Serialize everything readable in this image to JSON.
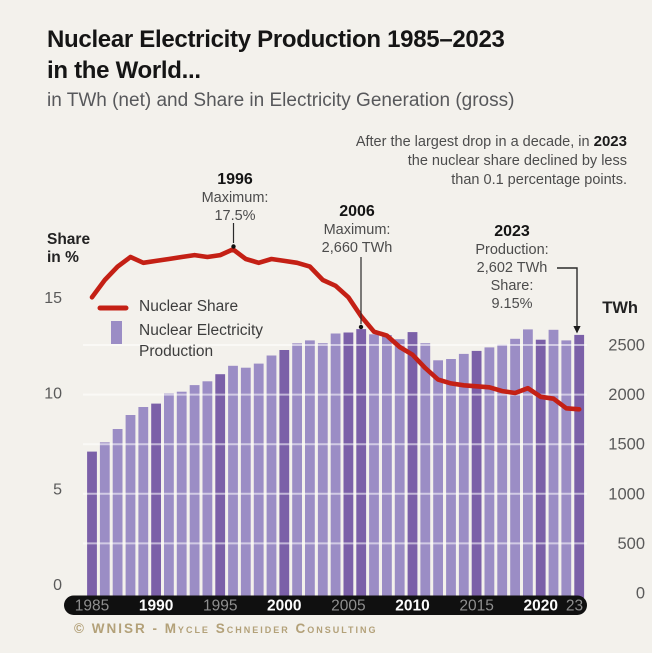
{
  "header": {
    "title_line1": "Nuclear Electricity Production 1985–2023",
    "title_line2": "in the World...",
    "subtitle": "in TWh (net) and Share in Electricity Generation (gross)"
  },
  "note": {
    "line1_prefix": "After the largest drop in a decade, in ",
    "line1_bold": "2023",
    "line2": "the nuclear share declined by less",
    "line3": "than 0.1 percentage points."
  },
  "callouts": {
    "c1996": {
      "year": "1996",
      "label": "Maximum:",
      "value": "17.5%"
    },
    "c2006": {
      "year": "2006",
      "label": "Maximum:",
      "value": "2,660 TWh"
    },
    "c2023": {
      "year": "2023",
      "label1": "Production:",
      "value1": "2,602 TWh",
      "label2": "Share:",
      "value2": "9.15%"
    }
  },
  "axes": {
    "left_title_line1": "Share",
    "left_title_line2": "in %",
    "right_title": "TWh"
  },
  "legend": {
    "share_label": "Nuclear Share",
    "production_line1": "Nuclear Electricity",
    "production_line2": "Production"
  },
  "footer": "© WNISR - Mycle Schneider Consulting",
  "colors": {
    "background": "#f3f1ec",
    "bar_light": "#9b8dc5",
    "bar_dark": "#7b60a8",
    "line_red": "#c42015",
    "pill_black": "#101010",
    "year_gray": "#8f8f8f",
    "year_white": "#fbfbfb",
    "tick_gray": "#5a5a5a",
    "footer_tan": "#b3a179"
  },
  "chart_data": {
    "type": "combo",
    "title": "Nuclear Electricity Production 1985–2023 in the World...",
    "subtitle": "in TWh (net) and Share in Electricity Generation (gross)",
    "x": [
      1985,
      1986,
      1987,
      1988,
      1989,
      1990,
      1991,
      1992,
      1993,
      1994,
      1995,
      1996,
      1997,
      1998,
      1999,
      2000,
      2001,
      2002,
      2003,
      2004,
      2005,
      2006,
      2007,
      2008,
      2009,
      2010,
      2011,
      2012,
      2013,
      2014,
      2015,
      2016,
      2017,
      2018,
      2019,
      2020,
      2021,
      2022,
      2023
    ],
    "series": [
      {
        "name": "Nuclear Electricity Production",
        "type": "bar",
        "unit": "TWh (net)",
        "axis": "right",
        "values": [
          1425,
          1519,
          1653,
          1794,
          1875,
          1909,
          2012,
          2029,
          2096,
          2134,
          2206,
          2290,
          2271,
          2313,
          2394,
          2450,
          2517,
          2546,
          2518,
          2616,
          2626,
          2660,
          2608,
          2601,
          2558,
          2630,
          2518,
          2346,
          2359,
          2410,
          2441,
          2476,
          2503,
          2563,
          2657,
          2553,
          2653,
          2546,
          2602
        ]
      },
      {
        "name": "Nuclear Share",
        "type": "line",
        "unit": "% (gross)",
        "axis": "left",
        "values": [
          15.0,
          15.9,
          16.6,
          17.1,
          16.8,
          16.9,
          17.0,
          17.1,
          17.2,
          17.1,
          17.2,
          17.5,
          17.0,
          16.8,
          17.0,
          16.9,
          16.8,
          16.6,
          15.9,
          15.6,
          15.0,
          14.0,
          13.2,
          13.0,
          12.4,
          12.0,
          11.3,
          10.7,
          10.5,
          10.4,
          10.35,
          10.3,
          10.1,
          10.0,
          10.25,
          9.8,
          9.7,
          9.2,
          9.15
        ]
      }
    ],
    "left_axis": {
      "title": "Share in %",
      "ticks": [
        15,
        10,
        5,
        0
      ],
      "range": [
        0,
        18.5
      ]
    },
    "right_axis": {
      "title": "TWh",
      "ticks": [
        2500,
        2000,
        1500,
        1000,
        500,
        0
      ],
      "range": [
        0,
        2750
      ]
    },
    "x_axis_labels": [
      {
        "text": "1985",
        "year": 1985,
        "bold": false
      },
      {
        "text": "1990",
        "year": 1990,
        "bold": true
      },
      {
        "text": "1995",
        "year": 1995,
        "bold": false
      },
      {
        "text": "2000",
        "year": 2000,
        "bold": true
      },
      {
        "text": "2005",
        "year": 2005,
        "bold": false
      },
      {
        "text": "2010",
        "year": 2010,
        "bold": true
      },
      {
        "text": "2015",
        "year": 2015,
        "bold": false
      },
      {
        "text": "2020",
        "year": 2020,
        "bold": true
      },
      {
        "text": "23",
        "year": 2023,
        "bold": false
      }
    ],
    "highlight_years": [
      1985,
      1990,
      1995,
      2000,
      2005,
      2006,
      2010,
      2015,
      2020,
      2023
    ],
    "annotations": [
      {
        "year": 1996,
        "text": "1996 Maximum: 17.5%"
      },
      {
        "year": 2006,
        "text": "2006 Maximum: 2,660 TWh"
      },
      {
        "year": 2023,
        "text": "2023 Production: 2,602 TWh Share: 9.15%"
      },
      {
        "text": "After the largest drop in a decade, in 2023 the nuclear share declined by less than 0.1 percentage points."
      }
    ],
    "grid": "horizontal, every 500 TWh",
    "legend_position": "upper-left inside plot"
  }
}
